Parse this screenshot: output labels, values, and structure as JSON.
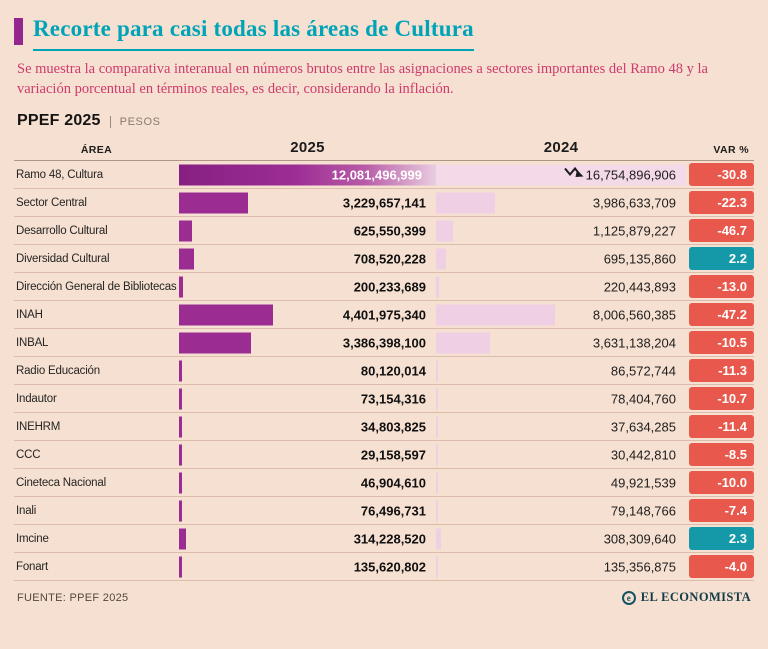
{
  "colors": {
    "background": "#f6e0d1",
    "title_teal": "#00a4b7",
    "accent_purple": "#93278f",
    "subtitle_magenta": "#cf3a6c",
    "bar_2025": "#9b2d92",
    "bar_2024": "#efcfe3",
    "badge_negative": "#e8584c",
    "badge_positive": "#1599a8",
    "row_divider": "#dcbcab"
  },
  "header": {
    "title": "Recorte para casi todas las áreas de Cultura",
    "subtitle": "Se muestra la comparativa interanual en números brutos entre las asignaciones a sectores importantes del Ramo 48 y la variación porcentual en términos reales, es decir, considerando la inflación.",
    "dataset_label": "PPEF 2025",
    "unit_label": "PESOS"
  },
  "table": {
    "columns": [
      "ÁREA",
      "2025",
      "2024",
      "VAR %"
    ],
    "rows": [
      {
        "area": "Ramo 48, Cultura",
        "v2025": "12,081,496,999",
        "v2024": "16,754,896,906",
        "var": "-30.8"
      },
      {
        "area": "Sector Central",
        "v2025": "3,229,657,141",
        "v2024": "3,986,633,709",
        "var": "-22.3"
      },
      {
        "area": "Desarrollo Cultural",
        "v2025": "625,550,399",
        "v2024": "1,125,879,227",
        "var": "-46.7"
      },
      {
        "area": "Diversidad Cultural",
        "v2025": "708,520,228",
        "v2024": "695,135,860",
        "var": "2.2"
      },
      {
        "area": "Dirección General de Bibliotecas",
        "v2025": "200,233,689",
        "v2024": "220,443,893",
        "var": "-13.0"
      },
      {
        "area": "INAH",
        "v2025": "4,401,975,340",
        "v2024": "8,006,560,385",
        "var": "-47.2"
      },
      {
        "area": "INBAL",
        "v2025": "3,386,398,100",
        "v2024": "3,631,138,204",
        "var": "-10.5"
      },
      {
        "area": "Radio Educación",
        "v2025": "80,120,014",
        "v2024": "86,572,744",
        "var": "-11.3"
      },
      {
        "area": "Indautor",
        "v2025": "73,154,316",
        "v2024": "78,404,760",
        "var": "-10.7"
      },
      {
        "area": "INEHRM",
        "v2025": "34,803,825",
        "v2024": "37,634,285",
        "var": "-11.4"
      },
      {
        "area": "CCC",
        "v2025": "29,158,597",
        "v2024": "30,442,810",
        "var": "-8.5"
      },
      {
        "area": "Cineteca Nacional",
        "v2025": "46,904,610",
        "v2024": "49,921,539",
        "var": "-10.0"
      },
      {
        "area": "Inali",
        "v2025": "76,496,731",
        "v2024": "79,148,766",
        "var": "-7.4"
      },
      {
        "area": "Imcine",
        "v2025": "314,228,520",
        "v2024": "308,309,640",
        "var": "2.3"
      },
      {
        "area": "Fonart",
        "v2025": "135,620,802",
        "v2024": "135,356,875",
        "var": "-4.0"
      }
    ]
  },
  "chart_data": {
    "type": "bar",
    "title": "Recorte para casi todas las áreas de Cultura",
    "subtitle": "Se muestra la comparativa interanual en números brutos entre las asignaciones a sectores importantes del Ramo 48 y la variación porcentual en términos reales, es decir, considerando la inflación.",
    "unit": "PESOS",
    "source": "PPEF 2025",
    "categories": [
      "Ramo 48, Cultura",
      "Sector Central",
      "Desarrollo Cultural",
      "Diversidad Cultural",
      "Dirección General de Bibliotecas",
      "INAH",
      "INBAL",
      "Radio Educación",
      "Indautor",
      "INEHRM",
      "CCC",
      "Cineteca Nacional",
      "Inali",
      "Imcine",
      "Fonart"
    ],
    "series": [
      {
        "name": "2025",
        "values": [
          12081496999,
          3229657141,
          625550399,
          708520228,
          200233689,
          4401975340,
          3386398100,
          80120014,
          73154316,
          34803825,
          29158597,
          46904610,
          76496731,
          314228520,
          135620802
        ]
      },
      {
        "name": "2024",
        "values": [
          16754896906,
          3986633709,
          1125879227,
          695135860,
          220443893,
          8006560385,
          3631138204,
          86572744,
          78404760,
          37634285,
          30442810,
          49921539,
          79148766,
          308309640,
          135356875
        ]
      },
      {
        "name": "VAR %",
        "values": [
          -30.8,
          -22.3,
          -46.7,
          2.2,
          -13.0,
          -47.2,
          -10.5,
          -11.3,
          -10.7,
          -11.4,
          -8.5,
          -10.0,
          -7.4,
          2.3,
          -4.0
        ]
      }
    ],
    "legend_position": "none",
    "grid": false
  },
  "footer": {
    "source": "FUENTE: PPEF 2025",
    "brand": "EL ECONOMISTA",
    "logo_glyph": "e"
  }
}
